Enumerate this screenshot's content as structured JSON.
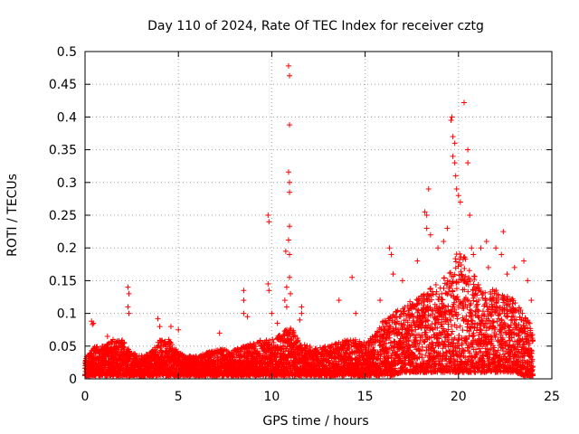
{
  "chart_data": {
    "type": "scatter",
    "title": "Day 110 of 2024, Rate Of TEC Index for receiver cztg",
    "xlabel": "GPS time / hours",
    "ylabel": "ROTI / TECUs",
    "xlim": [
      0,
      25
    ],
    "ylim": [
      0,
      0.5
    ],
    "x_ticks": [
      "0",
      "5",
      "10",
      "15",
      "20",
      "25"
    ],
    "y_ticks": [
      "0",
      "0.05",
      "0.1",
      "0.15",
      "0.2",
      "0.25",
      "0.3",
      "0.35",
      "0.4",
      "0.45",
      "0.5"
    ],
    "marker": "plus",
    "marker_color": "#ff0000",
    "grid": true,
    "series": [
      {
        "name": "ROTI",
        "points": [
          [
            0.35,
            0.088
          ],
          [
            0.4,
            0.083
          ],
          [
            0.45,
            0.085
          ],
          [
            1.2,
            0.065
          ],
          [
            1.5,
            0.06
          ],
          [
            2.3,
            0.14
          ],
          [
            2.35,
            0.13
          ],
          [
            2.3,
            0.11
          ],
          [
            2.35,
            0.1
          ],
          [
            3.9,
            0.092
          ],
          [
            4.0,
            0.08
          ],
          [
            4.6,
            0.08
          ],
          [
            5.0,
            0.075
          ],
          [
            7.2,
            0.07
          ],
          [
            8.5,
            0.135
          ],
          [
            8.5,
            0.12
          ],
          [
            8.5,
            0.1
          ],
          [
            8.7,
            0.095
          ],
          [
            9.8,
            0.25
          ],
          [
            9.85,
            0.24
          ],
          [
            9.8,
            0.145
          ],
          [
            9.85,
            0.135
          ],
          [
            10.0,
            0.1
          ],
          [
            10.3,
            0.085
          ],
          [
            10.9,
            0.478
          ],
          [
            10.95,
            0.463
          ],
          [
            10.95,
            0.388
          ],
          [
            10.9,
            0.316
          ],
          [
            10.95,
            0.3
          ],
          [
            10.95,
            0.285
          ],
          [
            10.95,
            0.233
          ],
          [
            10.9,
            0.212
          ],
          [
            10.75,
            0.195
          ],
          [
            10.95,
            0.19
          ],
          [
            10.95,
            0.155
          ],
          [
            10.8,
            0.14
          ],
          [
            11.0,
            0.13
          ],
          [
            10.7,
            0.12
          ],
          [
            10.8,
            0.11
          ],
          [
            11.6,
            0.11
          ],
          [
            11.6,
            0.1
          ],
          [
            11.5,
            0.09
          ],
          [
            13.6,
            0.12
          ],
          [
            14.3,
            0.155
          ],
          [
            14.5,
            0.1
          ],
          [
            15.8,
            0.12
          ],
          [
            16.3,
            0.2
          ],
          [
            16.4,
            0.19
          ],
          [
            16.5,
            0.16
          ],
          [
            17.0,
            0.15
          ],
          [
            17.8,
            0.18
          ],
          [
            18.2,
            0.255
          ],
          [
            18.3,
            0.25
          ],
          [
            18.3,
            0.23
          ],
          [
            18.4,
            0.29
          ],
          [
            18.5,
            0.22
          ],
          [
            18.9,
            0.2
          ],
          [
            19.2,
            0.21
          ],
          [
            19.4,
            0.23
          ],
          [
            19.6,
            0.395
          ],
          [
            19.65,
            0.4
          ],
          [
            19.7,
            0.37
          ],
          [
            19.8,
            0.36
          ],
          [
            19.7,
            0.34
          ],
          [
            19.8,
            0.33
          ],
          [
            19.85,
            0.31
          ],
          [
            19.9,
            0.29
          ],
          [
            20.0,
            0.28
          ],
          [
            20.1,
            0.27
          ],
          [
            20.3,
            0.422
          ],
          [
            20.5,
            0.35
          ],
          [
            20.5,
            0.33
          ],
          [
            20.6,
            0.25
          ],
          [
            20.7,
            0.2
          ],
          [
            20.8,
            0.19
          ],
          [
            21.2,
            0.2
          ],
          [
            21.5,
            0.21
          ],
          [
            21.6,
            0.17
          ],
          [
            22.0,
            0.2
          ],
          [
            22.3,
            0.19
          ],
          [
            22.4,
            0.225
          ],
          [
            22.6,
            0.16
          ],
          [
            23.0,
            0.17
          ],
          [
            23.5,
            0.18
          ],
          [
            23.7,
            0.15
          ],
          [
            23.9,
            0.12
          ]
        ],
        "envelope": {
          "hours": [
            0,
            0.5,
            1,
            1.5,
            2,
            2.5,
            3,
            3.5,
            4,
            4.5,
            5,
            5.5,
            6,
            6.5,
            7,
            7.5,
            8,
            8.5,
            9,
            9.5,
            10,
            10.5,
            11,
            11.5,
            12,
            12.5,
            13,
            13.5,
            14,
            14.5,
            15,
            15.5,
            16,
            16.5,
            17,
            17.5,
            18,
            18.5,
            19,
            19.5,
            20,
            20.5,
            21,
            21.5,
            22,
            22.5,
            23,
            23.5,
            24
          ],
          "upper": [
            0.03,
            0.05,
            0.05,
            0.06,
            0.06,
            0.04,
            0.035,
            0.04,
            0.06,
            0.06,
            0.04,
            0.035,
            0.035,
            0.04,
            0.045,
            0.045,
            0.045,
            0.05,
            0.055,
            0.06,
            0.06,
            0.07,
            0.08,
            0.06,
            0.05,
            0.05,
            0.05,
            0.055,
            0.06,
            0.06,
            0.055,
            0.07,
            0.09,
            0.1,
            0.11,
            0.12,
            0.13,
            0.14,
            0.15,
            0.16,
            0.2,
            0.18,
            0.15,
            0.13,
            0.14,
            0.13,
            0.12,
            0.1,
            0.08
          ],
          "lower": [
            0.005,
            0.005,
            0.005,
            0.005,
            0.005,
            0.005,
            0.005,
            0.005,
            0.005,
            0.005,
            0.005,
            0.005,
            0.005,
            0.005,
            0.005,
            0.005,
            0.005,
            0.005,
            0.005,
            0.005,
            0.005,
            0.005,
            0.005,
            0.005,
            0.005,
            0.005,
            0.005,
            0.005,
            0.005,
            0.005,
            0.005,
            0.005,
            0.005,
            0.005,
            0.01,
            0.01,
            0.01,
            0.01,
            0.01,
            0.01,
            0.01,
            0.01,
            0.01,
            0.01,
            0.01,
            0.01,
            0.01,
            0.005,
            0.005
          ]
        }
      }
    ]
  }
}
